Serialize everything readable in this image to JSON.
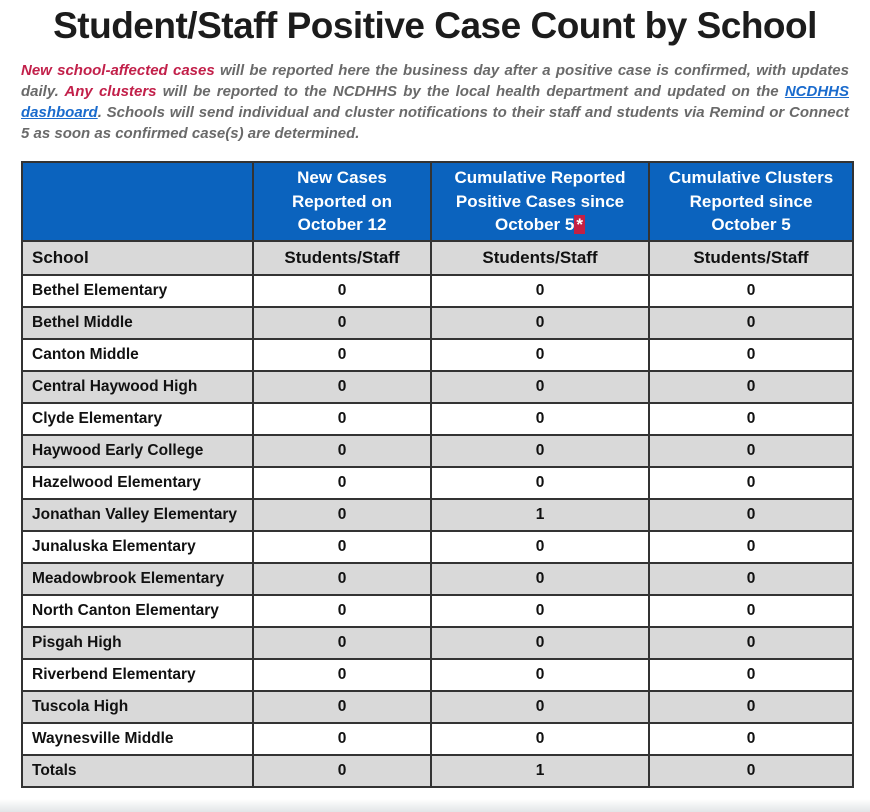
{
  "page": {
    "title": "Student/Staff Positive Case Count by School",
    "intro": {
      "red_part1": "New school-affected cases",
      "text_part1": " will be reported here the business day after a positive case is confirmed, with updates daily. ",
      "red_part2": "Any clusters",
      "text_part2": " will be reported to the NCDHHS by the local health department and updated on the ",
      "link_text": "NCDHHS dashboard",
      "text_part3": ". Schools will send individual and cluster notifications to their staff and students via Remind or Connect 5 as soon as confirmed case(s) are determined."
    }
  },
  "colors": {
    "header_blue": "#0b63be",
    "row_gray": "#d9d9d9",
    "accent_red": "#c2204a",
    "asterisk_highlight": "#c32045",
    "link_blue": "#1a6bcd"
  },
  "table": {
    "header": {
      "col1": "",
      "col2": "New Cases Reported on October 12",
      "col3": "Cumulative Reported Positive Cases since October 5",
      "col3_footnote": "*",
      "col4": "Cumulative Clusters Reported since October 5"
    },
    "subheader": {
      "school_label": "School",
      "students_staff_label": "Students/Staff"
    },
    "rows": [
      {
        "school": "Bethel Elementary",
        "new_cases": "0",
        "cumulative_cases": "0",
        "clusters": "0"
      },
      {
        "school": "Bethel Middle",
        "new_cases": "0",
        "cumulative_cases": "0",
        "clusters": "0"
      },
      {
        "school": "Canton Middle",
        "new_cases": "0",
        "cumulative_cases": "0",
        "clusters": "0"
      },
      {
        "school": "Central Haywood High",
        "new_cases": "0",
        "cumulative_cases": "0",
        "clusters": "0"
      },
      {
        "school": "Clyde Elementary",
        "new_cases": "0",
        "cumulative_cases": "0",
        "clusters": "0"
      },
      {
        "school": "Haywood Early College",
        "new_cases": "0",
        "cumulative_cases": "0",
        "clusters": "0"
      },
      {
        "school": "Hazelwood Elementary",
        "new_cases": "0",
        "cumulative_cases": "0",
        "clusters": "0"
      },
      {
        "school": "Jonathan Valley Elementary",
        "new_cases": "0",
        "cumulative_cases": "1",
        "clusters": "0"
      },
      {
        "school": "Junaluska Elementary",
        "new_cases": "0",
        "cumulative_cases": "0",
        "clusters": "0"
      },
      {
        "school": "Meadowbrook Elementary",
        "new_cases": "0",
        "cumulative_cases": "0",
        "clusters": "0"
      },
      {
        "school": "North Canton Elementary",
        "new_cases": "0",
        "cumulative_cases": "0",
        "clusters": "0"
      },
      {
        "school": "Pisgah High",
        "new_cases": "0",
        "cumulative_cases": "0",
        "clusters": "0"
      },
      {
        "school": "Riverbend Elementary",
        "new_cases": "0",
        "cumulative_cases": "0",
        "clusters": "0"
      },
      {
        "school": "Tuscola High",
        "new_cases": "0",
        "cumulative_cases": "0",
        "clusters": "0"
      },
      {
        "school": "Waynesville Middle",
        "new_cases": "0",
        "cumulative_cases": "0",
        "clusters": "0"
      },
      {
        "school": "Totals",
        "new_cases": "0",
        "cumulative_cases": "1",
        "clusters": "0"
      }
    ]
  }
}
